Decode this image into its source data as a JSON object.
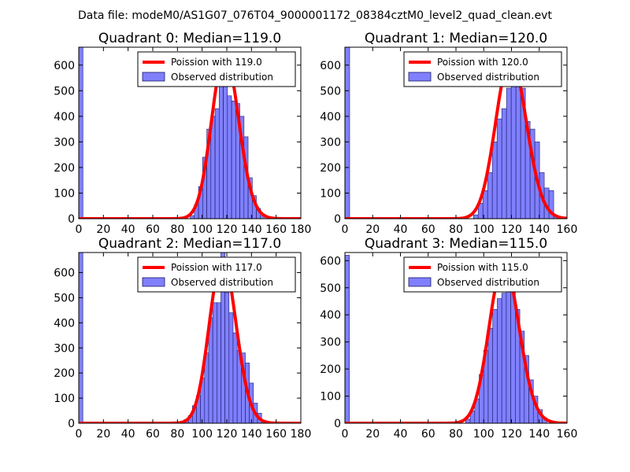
{
  "suptitle": "Data file: modeM0/AS1G07_076T04_9000001172_08384cztM0_level2_quad_clean.evt",
  "colors": {
    "model_line": "#ff0000",
    "hist_fill": "#8080ff",
    "hist_edge": "#1a1a66",
    "legend_edge": "#000000"
  },
  "chart_data": [
    {
      "type": "bar",
      "title": "Quadrant 0: Median=119.0",
      "median": 119.0,
      "xlim": [
        0,
        180
      ],
      "ylim": [
        0,
        670
      ],
      "xticks": [
        0,
        20,
        40,
        60,
        80,
        100,
        120,
        140,
        160,
        180
      ],
      "yticks": [
        0,
        100,
        200,
        300,
        400,
        500,
        600
      ],
      "legend": {
        "line_label": "Poission with 119.0",
        "hist_label": "Observed distribution",
        "loc": "upper right"
      },
      "hist": {
        "bin_width": 3.35,
        "bins": [
          0,
          66.9,
          90.4,
          93.7,
          97.1,
          100.4,
          103.8,
          107.1,
          110.5,
          113.8,
          117.2,
          120.5,
          123.9,
          127.2,
          130.6,
          133.9,
          137.3,
          140.6,
          144.0,
          147.3
        ],
        "counts": [
          670,
          5,
          12,
          55,
          125,
          240,
          350,
          400,
          430,
          540,
          570,
          480,
          460,
          450,
          400,
          320,
          160,
          90,
          40,
          10
        ]
      },
      "poisson": {
        "mean": 119.0,
        "peak": 640
      }
    },
    {
      "type": "bar",
      "title": "Quadrant 1: Median=120.0",
      "median": 120.0,
      "xlim": [
        0,
        160
      ],
      "ylim": [
        0,
        670
      ],
      "xticks": [
        0,
        20,
        40,
        60,
        80,
        100,
        120,
        140,
        160
      ],
      "yticks": [
        0,
        100,
        200,
        300,
        400,
        500,
        600
      ],
      "legend": {
        "line_label": "Poission with 120.0",
        "hist_label": "Observed distribution",
        "loc": "upper right"
      },
      "hist": {
        "bin_width": 3.4,
        "bins": [
          0,
          68.0,
          92.6,
          96.0,
          99.4,
          102.8,
          106.2,
          109.6,
          113.0,
          116.4,
          119.8,
          123.2,
          126.6,
          130.0,
          133.4,
          136.8,
          140.2,
          143.6,
          147.0,
          150.4
        ],
        "counts": [
          670,
          5,
          15,
          60,
          110,
          180,
          300,
          390,
          430,
          510,
          540,
          620,
          510,
          380,
          350,
          300,
          180,
          120,
          110,
          10
        ]
      },
      "poisson": {
        "mean": 120.0,
        "peak": 630
      }
    },
    {
      "type": "bar",
      "title": "Quadrant 2: Median=117.0",
      "median": 117.0,
      "xlim": [
        0,
        180
      ],
      "ylim": [
        0,
        680
      ],
      "xticks": [
        0,
        20,
        40,
        60,
        80,
        100,
        120,
        140,
        160,
        180
      ],
      "yticks": [
        0,
        100,
        200,
        300,
        400,
        500,
        600
      ],
      "legend": {
        "line_label": "Poission with 117.0",
        "hist_label": "Observed distribution",
        "loc": "upper right"
      },
      "hist": {
        "bin_width": 3.3,
        "bins": [
          0,
          63.5,
          71.5,
          85.5,
          88.8,
          92.1,
          95.4,
          98.7,
          102.0,
          105.3,
          108.6,
          111.9,
          115.2,
          118.5,
          121.8,
          125.1,
          128.4,
          131.7,
          135.0,
          138.3,
          141.6,
          144.9,
          148.2
        ],
        "counts": [
          680,
          5,
          5,
          15,
          30,
          70,
          110,
          180,
          280,
          420,
          480,
          480,
          680,
          520,
          440,
          360,
          290,
          280,
          240,
          160,
          80,
          40,
          10
        ]
      },
      "poisson": {
        "mean": 117.0,
        "peak": 655
      }
    },
    {
      "type": "bar",
      "title": "Quadrant 3: Median=115.0",
      "median": 115.0,
      "xlim": [
        0,
        160
      ],
      "ylim": [
        0,
        630
      ],
      "xticks": [
        0,
        20,
        40,
        60,
        80,
        100,
        120,
        140,
        160
      ],
      "yticks": [
        0,
        100,
        200,
        300,
        400,
        500,
        600
      ],
      "legend": {
        "line_label": "Poission with 115.0",
        "hist_label": "Observed distribution",
        "loc": "upper right"
      },
      "hist": {
        "bin_width": 3.25,
        "bins": [
          0,
          68.0,
          87.0,
          90.25,
          93.5,
          96.75,
          100.0,
          103.25,
          106.5,
          109.75,
          113.0,
          116.25,
          119.5,
          122.75,
          126.0,
          129.25,
          132.5,
          135.75,
          139.0,
          142.25
        ],
        "counts": [
          620,
          5,
          15,
          45,
          90,
          180,
          270,
          350,
          420,
          460,
          480,
          540,
          560,
          420,
          340,
          250,
          160,
          100,
          50,
          20
        ]
      },
      "poisson": {
        "mean": 115.0,
        "peak": 590
      }
    }
  ]
}
